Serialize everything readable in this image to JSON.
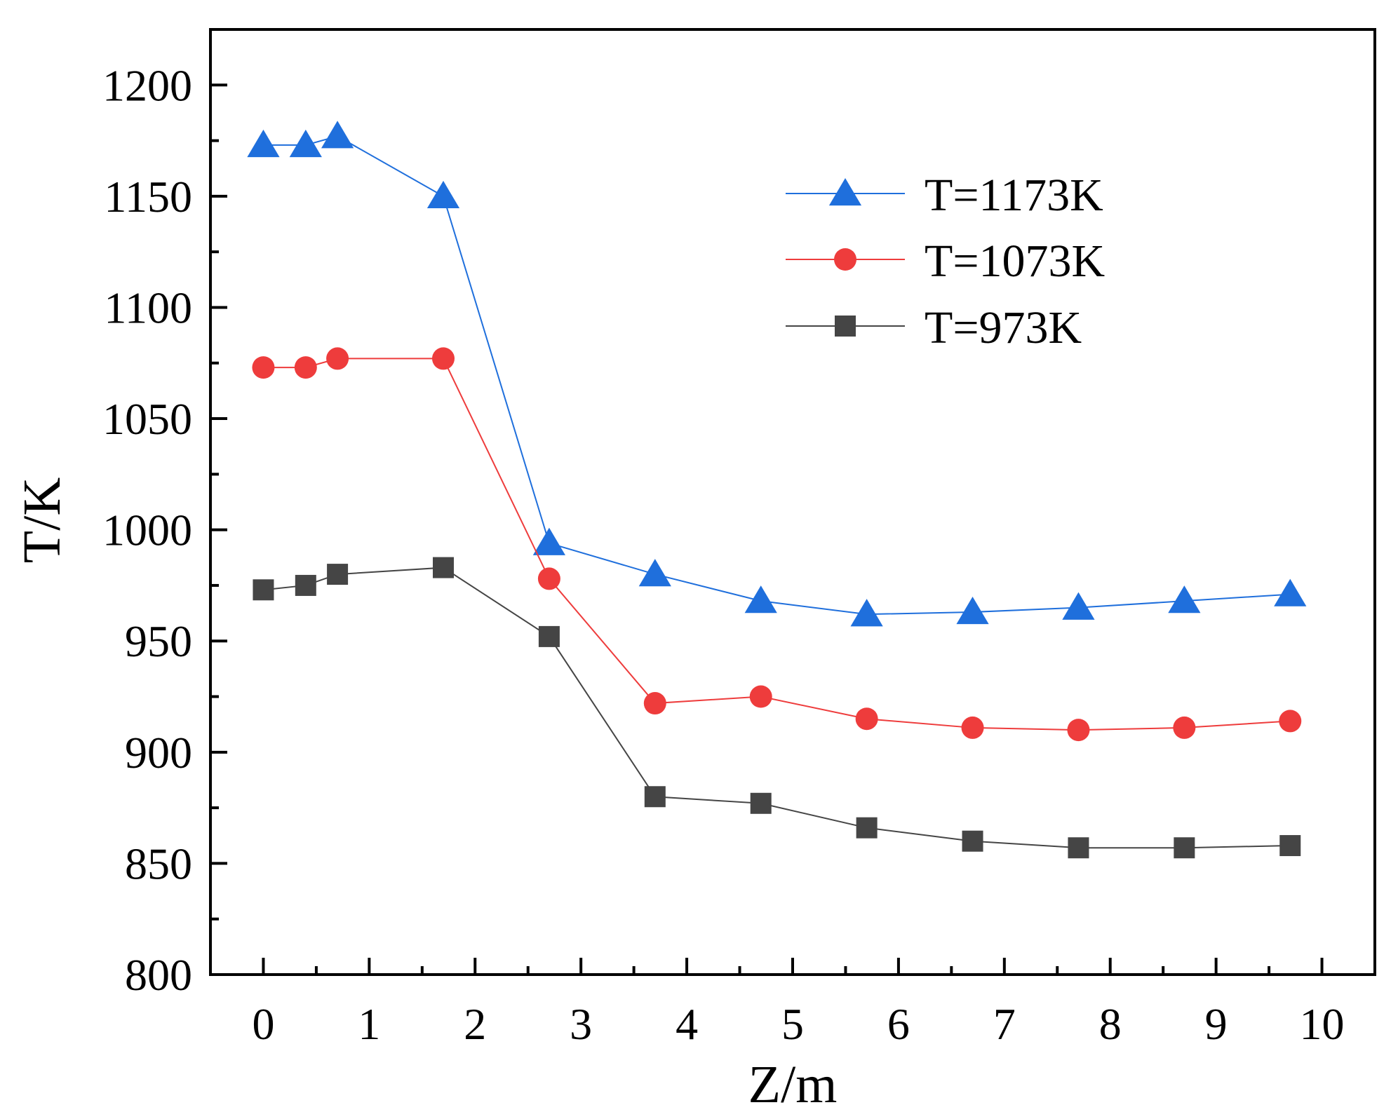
{
  "chart_data": {
    "type": "line",
    "title": "",
    "xlabel": "Z/m",
    "ylabel": "T/K",
    "xlim": [
      -0.5,
      10.5
    ],
    "ylim": [
      800,
      1225
    ],
    "xticks": [
      0,
      1,
      2,
      3,
      4,
      5,
      6,
      7,
      8,
      9,
      10
    ],
    "yticks": [
      800,
      850,
      900,
      950,
      1000,
      1050,
      1100,
      1150,
      1200
    ],
    "grid": false,
    "legend_position": "top-right",
    "x": [
      0,
      0.4,
      0.7,
      1.7,
      2.7,
      3.7,
      4.7,
      5.7,
      6.7,
      7.7,
      8.7,
      9.7
    ],
    "series": [
      {
        "name": "T=1173K",
        "marker": "triangle",
        "color": "#1f6fdc",
        "values": [
          1173,
          1173,
          1177,
          1150,
          994,
          980,
          968,
          962,
          963,
          965,
          968,
          971
        ]
      },
      {
        "name": "T=1073K",
        "marker": "circle",
        "color": "#ee3c3c",
        "values": [
          1073,
          1073,
          1077,
          1077,
          978,
          922,
          925,
          915,
          911,
          910,
          911,
          914
        ]
      },
      {
        "name": "T=973K",
        "marker": "square",
        "color": "#454545",
        "values": [
          973,
          975,
          980,
          983,
          952,
          880,
          877,
          866,
          860,
          857,
          857,
          858
        ]
      }
    ]
  }
}
